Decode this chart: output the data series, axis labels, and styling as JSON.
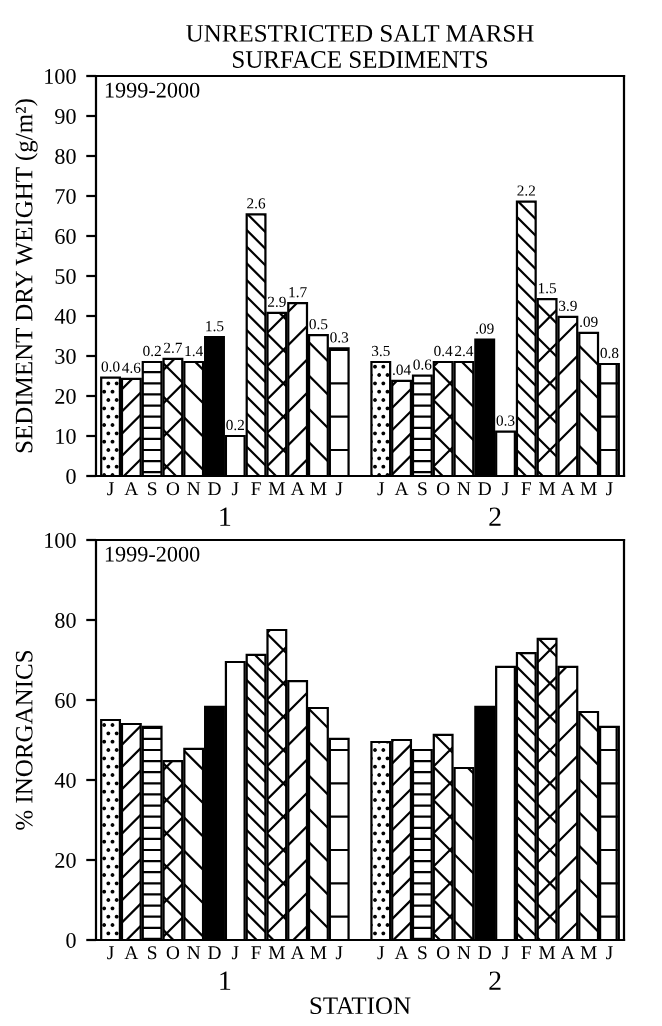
{
  "chart_data": [
    {
      "type": "bar",
      "title": "UNRESTRICTED SALT MARSH\nSURFACE SEDIMENTS",
      "ylabel": "SEDIMENT DRY WEIGHT (g/m²)",
      "categories": [
        "J",
        "A",
        "S",
        "O",
        "N",
        "D",
        "J",
        "F",
        "M",
        "A",
        "M",
        "J",
        null,
        "J",
        "A",
        "S",
        "O",
        "N",
        "D",
        "J",
        "F",
        "M",
        "A",
        "M",
        "J"
      ],
      "values": [
        24.6,
        24.3,
        28.5,
        29.3,
        28.5,
        34.7,
        10,
        65.4,
        40.8,
        43.2,
        35.2,
        31.9,
        null,
        28.5,
        23.8,
        25.1,
        28.5,
        28.5,
        34.1,
        11.1,
        68.6,
        44.2,
        39.8,
        35.8,
        28.0
      ],
      "color": "#000000",
      "annotations": [
        "1999-2000",
        "1",
        "2",
        "0.0",
        "4.6",
        "0.2",
        "2.7",
        "1.4",
        "1.5",
        "0.2",
        "2.6",
        "2.9",
        "1.7",
        "0.5",
        "0.3",
        "3.5",
        ".04",
        "0.6",
        "0.4",
        "2.4",
        ".09",
        "0.3",
        "2.2",
        "1.5",
        "3.9",
        ".09",
        "0.8"
      ],
      "ylim": [
        0,
        100
      ],
      "yticks": [
        0,
        10,
        20,
        30,
        40,
        50,
        60,
        70,
        80,
        90,
        100
      ],
      "grid": false,
      "legend": false
    },
    {
      "type": "bar",
      "ylabel": "% INORGANICS",
      "xlabel": "STATION",
      "categories": [
        "J",
        "A",
        "S",
        "O",
        "N",
        "D",
        "J",
        "F",
        "M",
        "A",
        "M",
        "J",
        null,
        "J",
        "A",
        "S",
        "O",
        "N",
        "D",
        "J",
        "F",
        "M",
        "A",
        "M",
        "J"
      ],
      "values": [
        55,
        54,
        53.3,
        44.7,
        47.8,
        58.3,
        69.5,
        71.3,
        77.5,
        64.7,
        58,
        50.3,
        null,
        49.5,
        50,
        47.5,
        51.3,
        43,
        58.3,
        68.3,
        71.7,
        75.3,
        68.3,
        57,
        53.3
      ],
      "color": "#000000",
      "annotations": [
        "1999-2000",
        "1",
        "2"
      ],
      "ylim": [
        0,
        100
      ],
      "yticks": [
        0,
        20,
        40,
        60,
        80,
        100
      ],
      "grid": false,
      "legend": false
    }
  ]
}
